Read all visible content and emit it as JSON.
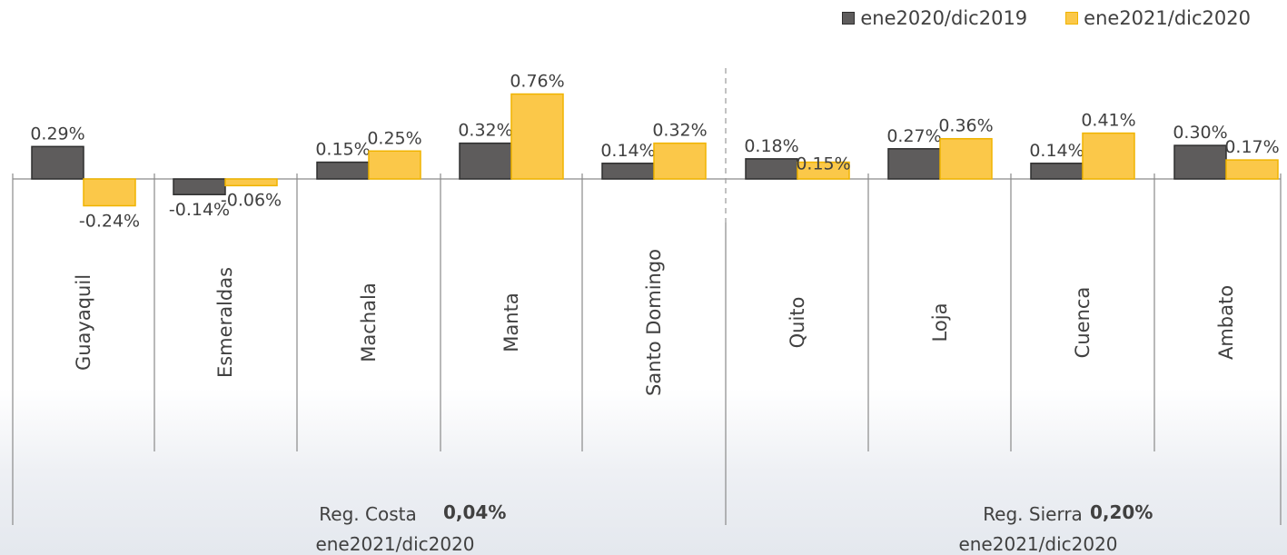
{
  "colors": {
    "series1": "#5e5c5c",
    "series1_stroke": "#2e2e2e",
    "series2": "#fbc849",
    "series2_stroke": "#f0b400",
    "axis": "#8a8a8a",
    "text": "#404040"
  },
  "chart_data": {
    "type": "bar",
    "categories": [
      "Guayaquil",
      "Esmeraldas",
      "Machala",
      "Manta",
      "Santo Domingo",
      "Quito",
      "Loja",
      "Cuenca",
      "Ambato"
    ],
    "series": [
      {
        "name": "ene2020/dic2019",
        "values": [
          0.29,
          -0.14,
          0.15,
          0.32,
          0.14,
          0.18,
          0.27,
          0.14,
          0.3
        ],
        "labels": [
          "0.29%",
          "-0.14%",
          "0.15%",
          "0.32%",
          "0.14%",
          "0.18%",
          "0.27%",
          "0.14%",
          "0.30%"
        ]
      },
      {
        "name": "ene2021/dic2020",
        "values": [
          -0.24,
          -0.06,
          0.25,
          0.76,
          0.32,
          0.15,
          0.36,
          0.41,
          0.17
        ],
        "labels": [
          "-0.24%",
          "-0.06%",
          "0.25%",
          "0.76%",
          "0.32%",
          "0.15%",
          "0.36%",
          "0.41%",
          "0.17%"
        ]
      }
    ],
    "title": "",
    "xlabel": "",
    "ylabel": "",
    "ylim": [
      -0.3,
      0.85
    ],
    "grid": false,
    "legend_position": "top-right",
    "groups": [
      {
        "name": "Reg. Costa",
        "value": "0,04%",
        "period": "ene2021/dic2020",
        "categories": [
          "Guayaquil",
          "Esmeraldas",
          "Machala",
          "Manta",
          "Santo Domingo"
        ]
      },
      {
        "name": "Reg. Sierra",
        "value": "0,20%",
        "period": "ene2021/dic2020",
        "categories": [
          "Quito",
          "Loja",
          "Cuenca",
          "Ambato"
        ]
      }
    ]
  }
}
